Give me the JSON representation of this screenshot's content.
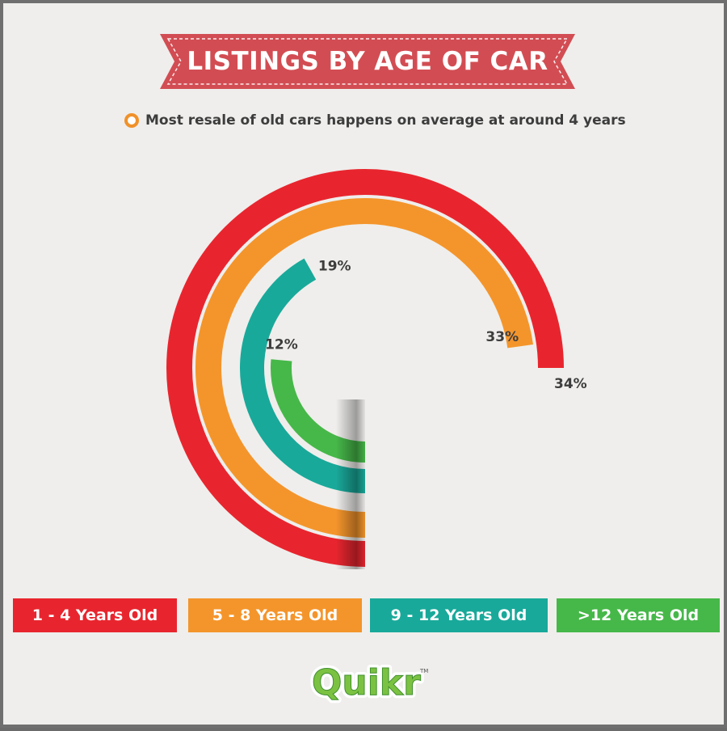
{
  "header": {
    "title": "LISTINGS BY AGE OF CAR",
    "subtitle": "Most resale of old cars happens on average at around 4 years"
  },
  "colors": {
    "red": "#e8252e",
    "orange": "#f4952b",
    "teal": "#19a99a",
    "green": "#46b849",
    "banner": "#d24d53"
  },
  "chart_data": {
    "type": "radial-bar",
    "series": [
      {
        "name": "1 - 4 Years Old",
        "value": 34,
        "label": "34%",
        "color": "#e8252e"
      },
      {
        "name": "5 - 8 Years Old",
        "value": 33,
        "label": "33%",
        "color": "#f4952b"
      },
      {
        "name": "9 - 12 Years Old",
        "value": 19,
        "label": "19%",
        "color": "#19a99a"
      },
      {
        "name": ">12 Years Old",
        "value": 12,
        "label": "12%",
        "color": "#46b849"
      }
    ]
  },
  "legend": [
    {
      "label": "1 - 4 Years Old",
      "color": "#e8252e"
    },
    {
      "label": "5 - 8 Years Old",
      "color": "#f4952b"
    },
    {
      "label": "9 - 12 Years Old",
      "color": "#19a99a"
    },
    {
      "label": ">12 Years Old",
      "color": "#46b849"
    }
  ],
  "logo": {
    "text": "Quikr",
    "tm": "TM"
  }
}
